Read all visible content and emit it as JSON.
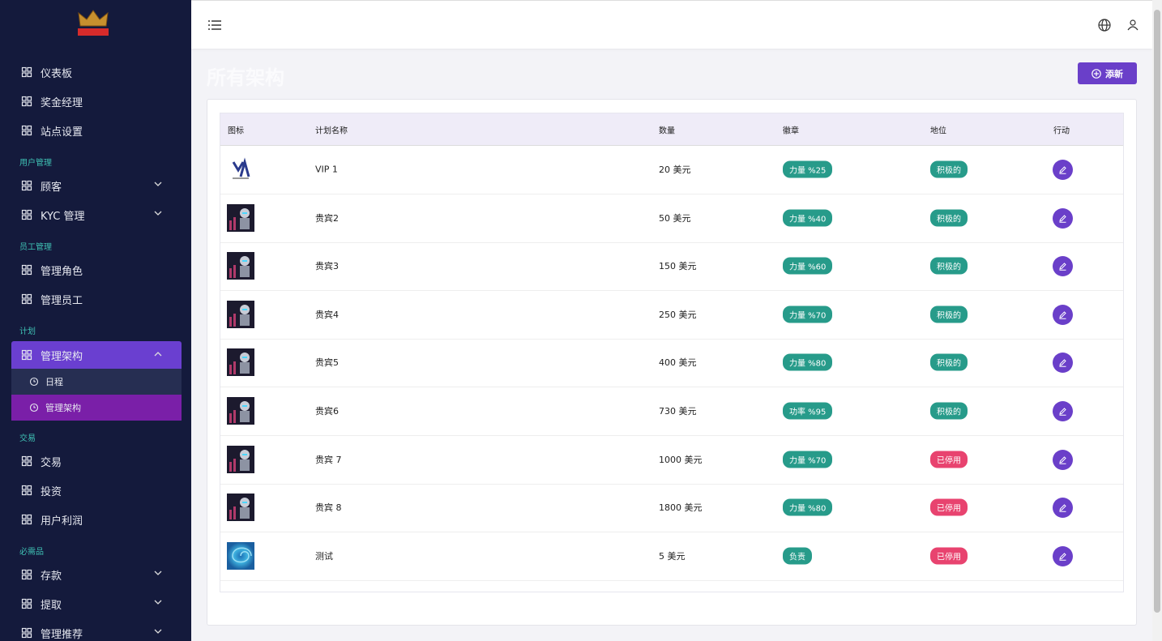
{
  "sidebar": {
    "groups": [
      {
        "items": [
          {
            "label": "仪表板"
          },
          {
            "label": "奖金经理"
          },
          {
            "label": "站点设置"
          }
        ]
      },
      {
        "title": "用户管理",
        "items": [
          {
            "label": "顾客",
            "expandable": true
          },
          {
            "label": "KYC 管理",
            "expandable": true
          }
        ]
      },
      {
        "title": "员工管理",
        "items": [
          {
            "label": "管理角色"
          },
          {
            "label": "管理员工"
          }
        ]
      },
      {
        "title": "计划",
        "items": [
          {
            "label": "管理架构",
            "expandable": true,
            "open": true,
            "children": [
              {
                "label": "日程"
              },
              {
                "label": "管理架构",
                "active": true
              }
            ]
          }
        ]
      },
      {
        "title": "交易",
        "items": [
          {
            "label": "交易"
          },
          {
            "label": "投资"
          },
          {
            "label": "用户利润"
          }
        ]
      },
      {
        "title": "必需品",
        "items": [
          {
            "label": "存款",
            "expandable": true
          },
          {
            "label": "提取",
            "expandable": true
          },
          {
            "label": "管理推荐",
            "expandable": true
          }
        ]
      }
    ]
  },
  "page": {
    "title": "所有架构",
    "add_button": "添新"
  },
  "table": {
    "columns": [
      "图标",
      "计划名称",
      "数量",
      "徽章",
      "地位",
      "行动"
    ],
    "rows": [
      {
        "icon": "logo",
        "name": "VIP 1",
        "amount": "20 美元",
        "badge": "力量 %25",
        "status": "积极的",
        "active": true
      },
      {
        "icon": "robot",
        "name": "贵宾2",
        "amount": "50 美元",
        "badge": "力量 %40",
        "status": "积极的",
        "active": true
      },
      {
        "icon": "robot",
        "name": "贵宾3",
        "amount": "150 美元",
        "badge": "力量 %60",
        "status": "积极的",
        "active": true
      },
      {
        "icon": "robot",
        "name": "贵宾4",
        "amount": "250 美元",
        "badge": "力量 %70",
        "status": "积极的",
        "active": true
      },
      {
        "icon": "robot",
        "name": "贵宾5",
        "amount": "400 美元",
        "badge": "力量 %80",
        "status": "积极的",
        "active": true
      },
      {
        "icon": "robot",
        "name": "贵宾6",
        "amount": "730 美元",
        "badge": "功率 %95",
        "status": "积极的",
        "active": true
      },
      {
        "icon": "robot",
        "name": "贵宾 7",
        "amount": "1000 美元",
        "badge": "力量 %70",
        "status": "已停用",
        "active": false
      },
      {
        "icon": "robot",
        "name": "贵宾 8",
        "amount": "1800 美元",
        "badge": "力量 %80",
        "status": "已停用",
        "active": false
      },
      {
        "icon": "swirl",
        "name": "测试",
        "amount": "5 美元",
        "badge": "负责",
        "status": "已停用",
        "active": false
      }
    ]
  }
}
